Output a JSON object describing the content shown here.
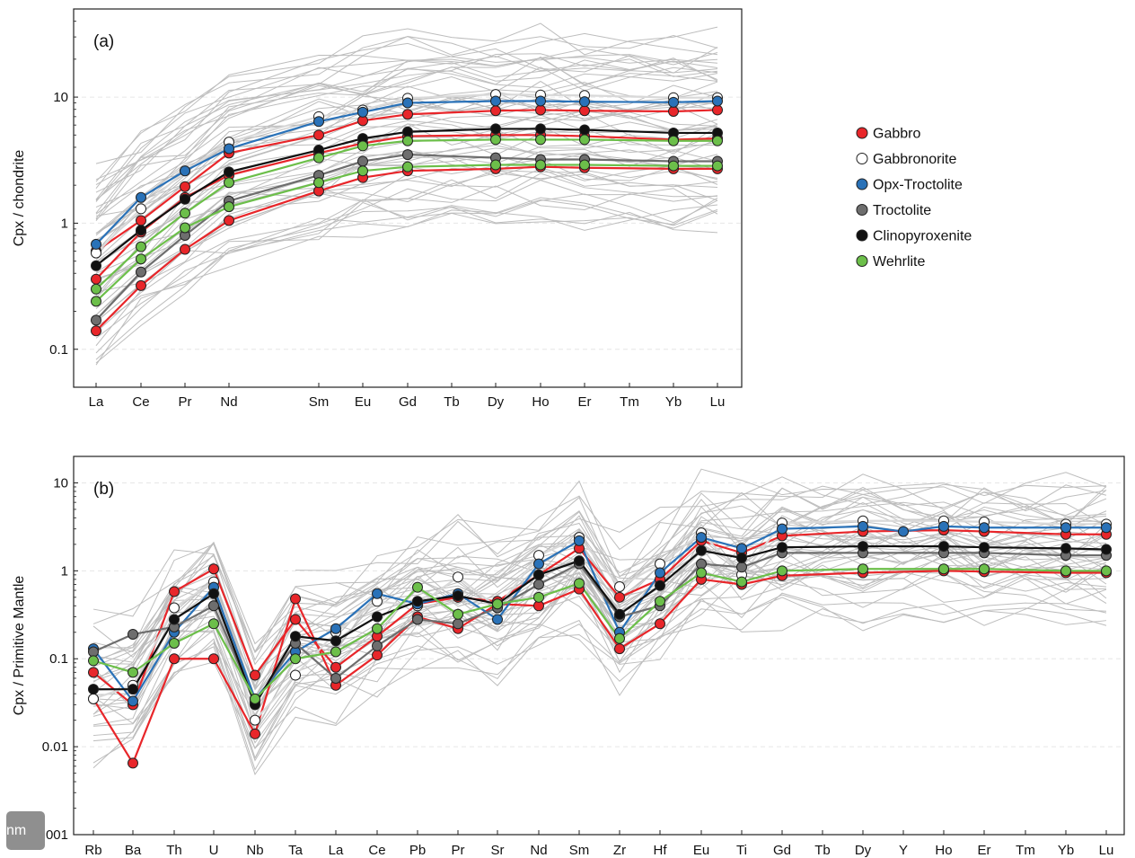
{
  "legend": [
    {
      "name": "Gabbro",
      "color": "#e8262a"
    },
    {
      "name": "Gabbronorite",
      "color": "#ffffff"
    },
    {
      "name": "Opx-Troctolite",
      "color": "#2a72b8"
    },
    {
      "name": "Troctolite",
      "color": "#6e6e6e"
    },
    {
      "name": "Clinopyroxenite",
      "color": "#111111"
    },
    {
      "name": "Wehrlite",
      "color": "#6cbf4a"
    }
  ],
  "badge": "nm",
  "chart_data": [
    {
      "type": "line",
      "panel_label": "(a)",
      "ylabel": "Cpx / chondrite",
      "yscale": "log",
      "ylim": [
        0.05,
        50
      ],
      "yticks": [
        0.1,
        1,
        10
      ],
      "ytick_labels": [
        "0.1",
        "1",
        "10"
      ],
      "x": [
        "La",
        "Ce",
        "Pr",
        "Nd",
        "Sm",
        "Eu",
        "Gd",
        "Tb",
        "Dy",
        "Ho",
        "Er",
        "Tm",
        "Yb",
        "Lu"
      ],
      "background_color": "#bdbdbd",
      "series": [
        {
          "name": "Gabbro",
          "color": "#e8262a",
          "values": [
            0.14,
            0.32,
            0.62,
            1.05,
            1.8,
            2.3,
            2.6,
            null,
            2.7,
            2.8,
            2.75,
            null,
            2.7,
            2.7
          ]
        },
        {
          "name": "Gabbro",
          "color": "#e8262a",
          "values": [
            0.36,
            0.85,
            1.6,
            2.4,
            3.6,
            4.3,
            4.9,
            null,
            5.0,
            5.0,
            4.9,
            null,
            4.6,
            4.7
          ]
        },
        {
          "name": "Gabbro",
          "color": "#e8262a",
          "values": [
            0.6,
            1.05,
            1.95,
            3.6,
            5.0,
            6.5,
            7.3,
            null,
            7.8,
            7.9,
            7.8,
            null,
            7.7,
            7.9
          ]
        },
        {
          "name": "Gabbronorite",
          "color": "#ffffff",
          "values": [
            0.58,
            1.3,
            2.6,
            4.4,
            7.0,
            7.9,
            9.8,
            null,
            10.5,
            10.4,
            10.3,
            null,
            9.9,
            9.9
          ]
        },
        {
          "name": "Opx-Troctolite",
          "color": "#2a72b8",
          "values": [
            0.68,
            1.6,
            2.6,
            3.9,
            6.4,
            7.6,
            9.0,
            null,
            9.3,
            9.3,
            9.2,
            null,
            9.1,
            9.3
          ]
        },
        {
          "name": "Troctolite",
          "color": "#6e6e6e",
          "values": [
            0.17,
            0.41,
            0.8,
            1.5,
            2.4,
            3.1,
            3.5,
            null,
            3.3,
            3.2,
            3.2,
            null,
            3.1,
            3.1
          ]
        },
        {
          "name": "Clinopyroxenite",
          "color": "#111111",
          "values": [
            0.46,
            0.88,
            1.55,
            2.55,
            3.8,
            4.7,
            5.3,
            null,
            5.6,
            5.6,
            5.5,
            null,
            5.2,
            5.2
          ]
        },
        {
          "name": "Wehrlite",
          "color": "#6cbf4a",
          "values": [
            0.3,
            0.65,
            1.2,
            2.1,
            3.3,
            4.1,
            4.5,
            null,
            4.6,
            4.6,
            4.6,
            null,
            4.5,
            4.5
          ]
        },
        {
          "name": "Wehrlite",
          "color": "#6cbf4a",
          "values": [
            0.24,
            0.52,
            0.92,
            1.35,
            2.1,
            2.6,
            2.8,
            null,
            2.9,
            2.9,
            2.9,
            null,
            2.85,
            2.85
          ]
        }
      ]
    },
    {
      "type": "line",
      "panel_label": "(b)",
      "ylabel": "Cpx / Primitive Mantle",
      "yscale": "log",
      "ylim": [
        0.001,
        20
      ],
      "yticks": [
        0.001,
        0.01,
        0.1,
        1,
        10
      ],
      "ytick_labels": [
        "0.001",
        "0.01",
        "0.1",
        "1",
        "10"
      ],
      "x": [
        "Rb",
        "Ba",
        "Th",
        "U",
        "Nb",
        "Ta",
        "La",
        "Ce",
        "Pb",
        "Pr",
        "Sr",
        "Nd",
        "Sm",
        "Zr",
        "Hf",
        "Eu",
        "Ti",
        "Gd",
        "Tb",
        "Dy",
        "Y",
        "Ho",
        "Er",
        "Tm",
        "Yb",
        "Lu"
      ],
      "background_color": "#bdbdbd",
      "series": [
        {
          "name": "Gabbro",
          "color": "#e8262a",
          "values": [
            0.035,
            0.0065,
            0.1,
            0.1,
            0.014,
            0.48,
            0.05,
            0.11,
            0.3,
            0.22,
            0.42,
            0.4,
            0.62,
            0.13,
            0.25,
            0.8,
            0.7,
            0.88,
            null,
            0.95,
            null,
            1.0,
            0.98,
            null,
            0.95,
            0.95
          ]
        },
        {
          "name": "Gabbro",
          "color": "#e8262a",
          "values": [
            0.07,
            0.03,
            0.58,
            1.05,
            0.065,
            0.28,
            0.08,
            0.18,
            0.42,
            0.5,
            0.45,
            0.9,
            1.8,
            0.5,
            0.8,
            2.2,
            1.6,
            2.5,
            null,
            2.8,
            null,
            2.9,
            2.8,
            null,
            2.6,
            2.6
          ]
        },
        {
          "name": "Gabbronorite",
          "color": "#ffffff",
          "values": [
            0.035,
            0.05,
            0.38,
            0.75,
            0.02,
            0.065,
            0.2,
            0.45,
            0.4,
            0.85,
            0.38,
            1.5,
            2.4,
            0.66,
            1.2,
            2.7,
            0.9,
            3.5,
            null,
            3.7,
            null,
            3.7,
            3.6,
            null,
            3.4,
            3.4
          ]
        },
        {
          "name": "Opx-Troctolite",
          "color": "#2a72b8",
          "values": [
            0.13,
            0.033,
            0.2,
            0.65,
            0.035,
            0.12,
            0.22,
            0.55,
            0.42,
            0.55,
            0.28,
            1.2,
            2.2,
            0.2,
            0.95,
            2.4,
            1.8,
            3.0,
            null,
            3.2,
            2.8,
            3.2,
            3.1,
            null,
            3.1,
            3.1
          ]
        },
        {
          "name": "Troctolite",
          "color": "#6e6e6e",
          "values": [
            0.12,
            0.19,
            0.23,
            0.4,
            0.032,
            0.15,
            0.06,
            0.14,
            0.28,
            0.25,
            0.38,
            0.7,
            1.2,
            0.3,
            0.4,
            1.2,
            1.1,
            1.6,
            null,
            1.6,
            null,
            1.6,
            1.6,
            null,
            1.5,
            1.5
          ]
        },
        {
          "name": "Clinopyroxenite",
          "color": "#111111",
          "values": [
            0.045,
            0.045,
            0.28,
            0.55,
            0.03,
            0.18,
            0.16,
            0.3,
            0.45,
            0.52,
            0.42,
            0.9,
            1.3,
            0.32,
            0.68,
            1.7,
            1.4,
            1.85,
            null,
            1.9,
            null,
            1.9,
            1.85,
            null,
            1.8,
            1.75
          ]
        },
        {
          "name": "Wehrlite",
          "color": "#6cbf4a",
          "values": [
            0.095,
            0.07,
            0.15,
            0.25,
            0.035,
            0.1,
            0.12,
            0.22,
            0.65,
            0.32,
            0.42,
            0.5,
            0.72,
            0.17,
            0.45,
            0.95,
            0.75,
            1.0,
            null,
            1.05,
            null,
            1.05,
            1.05,
            null,
            1.0,
            1.0
          ]
        }
      ]
    }
  ]
}
